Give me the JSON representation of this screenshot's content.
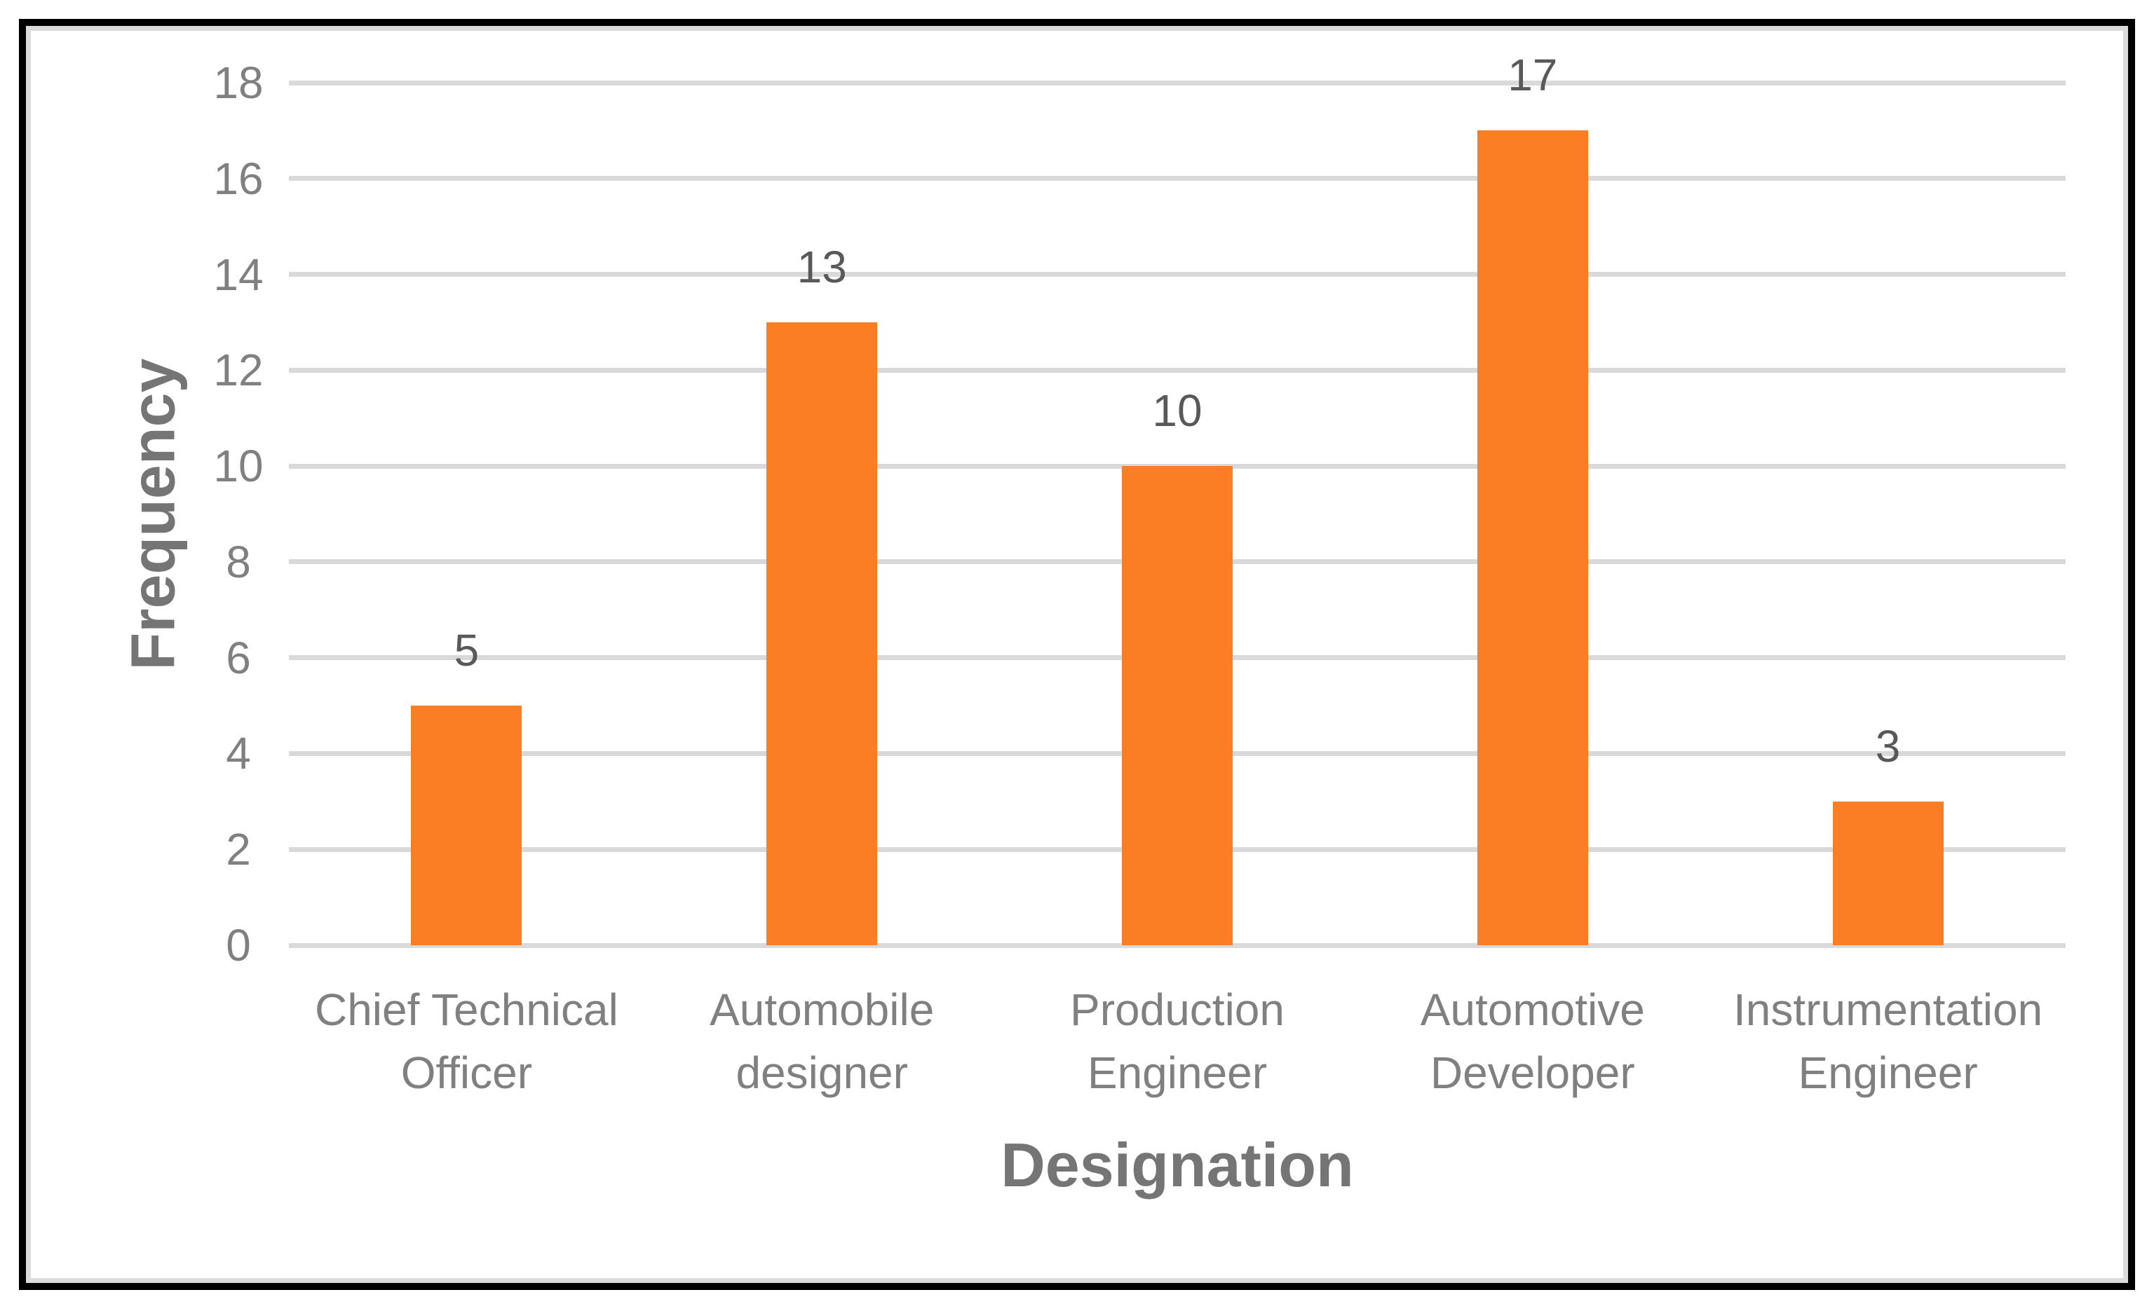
{
  "frame": {
    "outer_border_color": "#000000",
    "inner_border_color": "#DBDBDB",
    "background": "#FFFFFF"
  },
  "chart_data": {
    "type": "bar",
    "title": "",
    "categories": [
      "Chief Technical Officer",
      "Automobile designer",
      "Production Engineer",
      "Automotive Developer",
      "Instrumentation Engineer"
    ],
    "category_label_lines": [
      [
        "Chief Technical",
        "Officer"
      ],
      [
        "Automobile",
        "designer"
      ],
      [
        "Production",
        "Engineer"
      ],
      [
        "Automotive",
        "Developer"
      ],
      [
        "Instrumentation",
        "Engineer"
      ]
    ],
    "values": [
      5,
      13,
      10,
      17,
      3
    ],
    "data_labels": [
      "5",
      "13",
      "10",
      "17",
      "3"
    ],
    "xlabel": "Designation",
    "ylabel": "Frequency",
    "ylim": [
      0,
      18
    ],
    "ytick_step": 2,
    "yticks": [
      0,
      2,
      4,
      6,
      8,
      10,
      12,
      14,
      16,
      18
    ],
    "grid": true,
    "legend_position": "none",
    "bar_color": "#FC7E24",
    "gridline_color": "#D9D9D9",
    "tick_label_color": "#808080",
    "data_label_color": "#595959",
    "axis_title_color": "#757575"
  }
}
